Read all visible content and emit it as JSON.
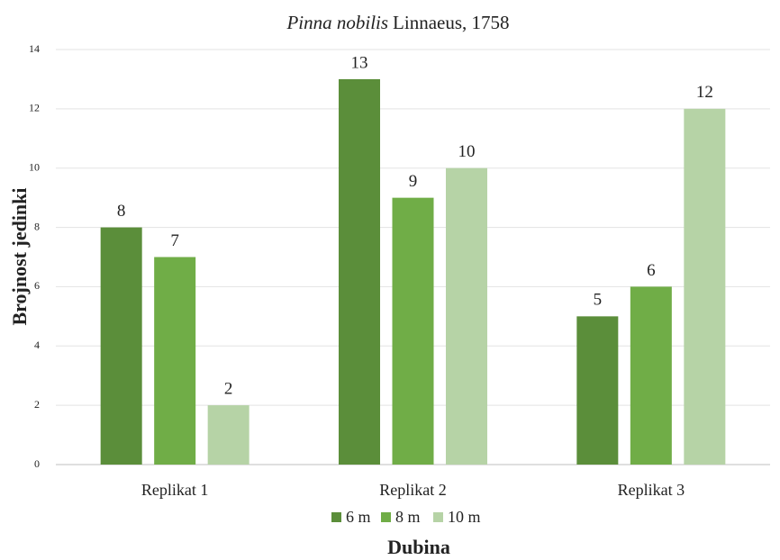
{
  "chart_data": {
    "type": "bar",
    "title": [
      "Pinna nobilis",
      "Linnaeus, 1758"
    ],
    "x_label": "Dubina",
    "y_label": "Brojnost jedinki",
    "categories": [
      "Replikat 1",
      "Replikat 2",
      "Replikat 3"
    ],
    "series": [
      {
        "name": "6 m",
        "color": "#5b8e3a",
        "values": [
          8,
          13,
          5
        ]
      },
      {
        "name": "8 m",
        "color": "#70ad47",
        "values": [
          7,
          9,
          6
        ]
      },
      {
        "name": "10 m",
        "color": "#b6d3a6",
        "values": [
          2,
          10,
          12
        ]
      }
    ],
    "ylim": [
      0,
      14
    ],
    "yticks": [
      0,
      2,
      4,
      6,
      8,
      10,
      12,
      14
    ],
    "grid": true,
    "legend": "bottom"
  }
}
